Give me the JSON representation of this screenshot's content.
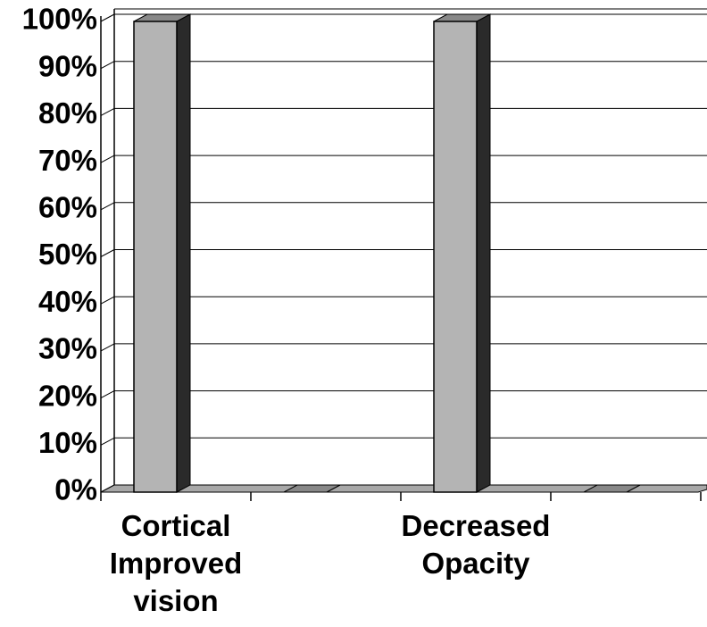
{
  "chart_data": {
    "type": "bar3d",
    "categories": [
      "Cortical Improved vision",
      null,
      "Decreased Opacity",
      null
    ],
    "values": [
      100,
      0,
      100,
      0
    ],
    "color": "#b4b4b4",
    "ylim": [
      0,
      100
    ],
    "yticks": [
      {
        "value": 0,
        "label": "0%"
      },
      {
        "value": 10,
        "label": "10%"
      },
      {
        "value": 20,
        "label": "20%"
      },
      {
        "value": 30,
        "label": "30%"
      },
      {
        "value": 40,
        "label": "40%"
      },
      {
        "value": 50,
        "label": "50%"
      },
      {
        "value": 60,
        "label": "60%"
      },
      {
        "value": 70,
        "label": "70%"
      },
      {
        "value": 80,
        "label": "80%"
      },
      {
        "value": 90,
        "label": "90%"
      },
      {
        "value": 100,
        "label": "100%"
      }
    ],
    "grid": true
  }
}
